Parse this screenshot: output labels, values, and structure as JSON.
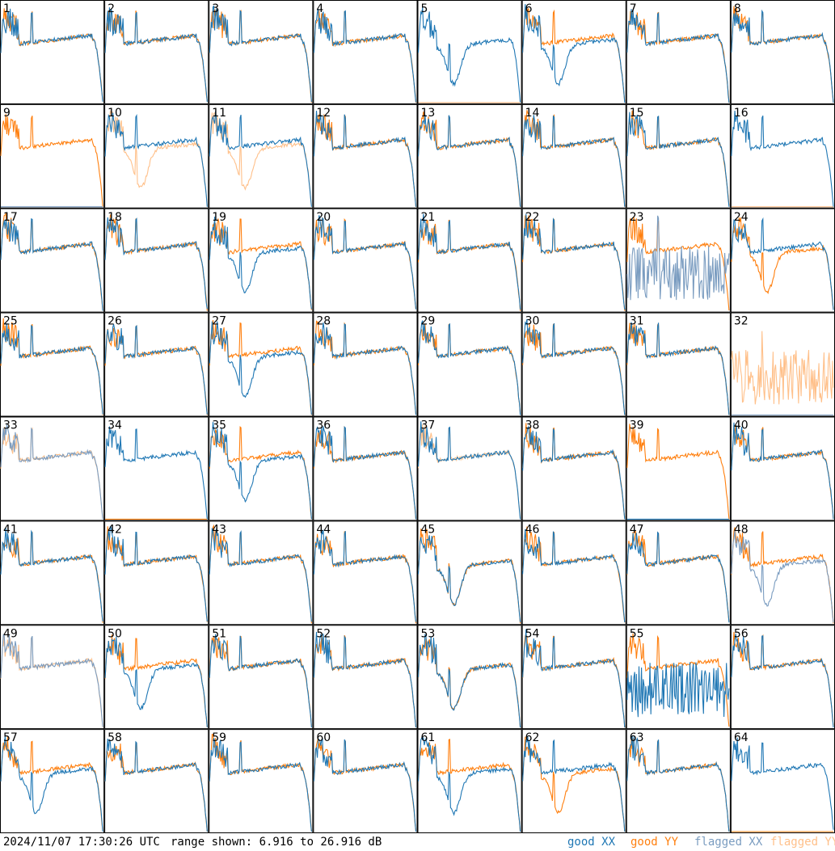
{
  "chart_data": {
    "type": "line",
    "layout": "8x8 grid of small multiples",
    "panel_labels": [
      "1",
      "2",
      "3",
      "4",
      "5",
      "6",
      "7",
      "8",
      "9",
      "10",
      "11",
      "12",
      "13",
      "14",
      "15",
      "16",
      "17",
      "18",
      "19",
      "20",
      "21",
      "22",
      "23",
      "24",
      "25",
      "26",
      "27",
      "28",
      "29",
      "30",
      "31",
      "32",
      "33",
      "34",
      "35",
      "36",
      "37",
      "38",
      "39",
      "40",
      "41",
      "42",
      "43",
      "44",
      "45",
      "46",
      "47",
      "48",
      "49",
      "50",
      "51",
      "52",
      "53",
      "54",
      "55",
      "56",
      "57",
      "58",
      "59",
      "60",
      "61",
      "62",
      "63",
      "64"
    ],
    "ylim": [
      6.916,
      26.916
    ],
    "yunit": "dB",
    "series_legend": [
      "good XX",
      "good YY",
      "flagged XX",
      "flagged YY"
    ],
    "colors": {
      "good_xx": "#1f77b4",
      "good_yy": "#ff7f0e",
      "flagged_xx": "#7a9cc0",
      "flagged_yy": "#ffc08a"
    },
    "panels": [
      {
        "id": 1,
        "xx": "good",
        "yy": "good",
        "xx_shape": "bandpass",
        "yy_shape": "bandpass"
      },
      {
        "id": 2,
        "xx": "good",
        "yy": "good",
        "xx_shape": "bandpass",
        "yy_shape": "bandpass"
      },
      {
        "id": 3,
        "xx": "good",
        "yy": "good",
        "xx_shape": "bandpass",
        "yy_shape": "bandpass"
      },
      {
        "id": 4,
        "xx": "good",
        "yy": "good",
        "xx_shape": "bandpass",
        "yy_shape": "bandpass"
      },
      {
        "id": 5,
        "xx": "good",
        "yy": "flagged",
        "xx_shape": "dip",
        "yy_shape": "zero"
      },
      {
        "id": 6,
        "xx": "good",
        "yy": "good",
        "xx_shape": "dip",
        "yy_shape": "bandpass"
      },
      {
        "id": 7,
        "xx": "good",
        "yy": "good",
        "xx_shape": "bandpass",
        "yy_shape": "bandpass"
      },
      {
        "id": 8,
        "xx": "good",
        "yy": "good",
        "xx_shape": "bandpass",
        "yy_shape": "bandpass"
      },
      {
        "id": 9,
        "xx": "flagged",
        "yy": "good",
        "xx_shape": "zero",
        "yy_shape": "bandpass"
      },
      {
        "id": 10,
        "xx": "good",
        "yy": "flagged",
        "xx_shape": "bandpass",
        "yy_shape": "dip"
      },
      {
        "id": 11,
        "xx": "good",
        "yy": "flagged",
        "xx_shape": "bandpass",
        "yy_shape": "dip"
      },
      {
        "id": 12,
        "xx": "good",
        "yy": "good",
        "xx_shape": "bandpass",
        "yy_shape": "bandpass"
      },
      {
        "id": 13,
        "xx": "good",
        "yy": "good",
        "xx_shape": "bandpass",
        "yy_shape": "bandpass"
      },
      {
        "id": 14,
        "xx": "good",
        "yy": "good",
        "xx_shape": "bandpass",
        "yy_shape": "bandpass"
      },
      {
        "id": 15,
        "xx": "good",
        "yy": "good",
        "xx_shape": "bandpass",
        "yy_shape": "bandpass"
      },
      {
        "id": 16,
        "xx": "good",
        "yy": "flagged",
        "xx_shape": "bandpass",
        "yy_shape": "zero"
      },
      {
        "id": 17,
        "xx": "good",
        "yy": "good",
        "xx_shape": "bandpass",
        "yy_shape": "bandpass"
      },
      {
        "id": 18,
        "xx": "good",
        "yy": "good",
        "xx_shape": "bandpass",
        "yy_shape": "bandpass"
      },
      {
        "id": 19,
        "xx": "good",
        "yy": "good",
        "xx_shape": "dip",
        "yy_shape": "bandpass"
      },
      {
        "id": 20,
        "xx": "good",
        "yy": "good",
        "xx_shape": "bandpass",
        "yy_shape": "bandpass"
      },
      {
        "id": 21,
        "xx": "good",
        "yy": "good",
        "xx_shape": "bandpass",
        "yy_shape": "bandpass"
      },
      {
        "id": 22,
        "xx": "good",
        "yy": "good",
        "xx_shape": "bandpass",
        "yy_shape": "bandpass"
      },
      {
        "id": 23,
        "xx": "flagged",
        "yy": "good",
        "xx_shape": "noise",
        "yy_shape": "bandpass"
      },
      {
        "id": 24,
        "xx": "good",
        "yy": "good",
        "xx_shape": "bandpass",
        "yy_shape": "dip"
      },
      {
        "id": 25,
        "xx": "good",
        "yy": "good",
        "xx_shape": "bandpass",
        "yy_shape": "bandpass"
      },
      {
        "id": 26,
        "xx": "good",
        "yy": "good",
        "xx_shape": "bandpass",
        "yy_shape": "bandpass"
      },
      {
        "id": 27,
        "xx": "good",
        "yy": "good",
        "xx_shape": "dip",
        "yy_shape": "bandpass"
      },
      {
        "id": 28,
        "xx": "good",
        "yy": "good",
        "xx_shape": "bandpass",
        "yy_shape": "bandpass"
      },
      {
        "id": 29,
        "xx": "good",
        "yy": "good",
        "xx_shape": "bandpass",
        "yy_shape": "bandpass"
      },
      {
        "id": 30,
        "xx": "good",
        "yy": "good",
        "xx_shape": "bandpass",
        "yy_shape": "bandpass"
      },
      {
        "id": 31,
        "xx": "good",
        "yy": "good",
        "xx_shape": "bandpass",
        "yy_shape": "bandpass"
      },
      {
        "id": 32,
        "xx": "flagged",
        "yy": "flagged",
        "xx_shape": "zero",
        "yy_shape": "noise"
      },
      {
        "id": 33,
        "xx": "flagged",
        "yy": "flagged",
        "xx_shape": "bandpass",
        "yy_shape": "bandpass"
      },
      {
        "id": 34,
        "xx": "good",
        "yy": "good",
        "xx_shape": "bandpass",
        "yy_shape": "zero"
      },
      {
        "id": 35,
        "xx": "good",
        "yy": "good",
        "xx_shape": "dip",
        "yy_shape": "bandpass"
      },
      {
        "id": 36,
        "xx": "good",
        "yy": "good",
        "xx_shape": "bandpass",
        "yy_shape": "bandpass"
      },
      {
        "id": 37,
        "xx": "good",
        "yy": "flagged",
        "xx_shape": "bandpass",
        "yy_shape": "bandpass"
      },
      {
        "id": 38,
        "xx": "good",
        "yy": "good",
        "xx_shape": "bandpass",
        "yy_shape": "bandpass"
      },
      {
        "id": 39,
        "xx": "good",
        "yy": "good",
        "xx_shape": "zero",
        "yy_shape": "bandpass"
      },
      {
        "id": 40,
        "xx": "good",
        "yy": "good",
        "xx_shape": "bandpass",
        "yy_shape": "bandpass"
      },
      {
        "id": 41,
        "xx": "good",
        "yy": "good",
        "xx_shape": "bandpass",
        "yy_shape": "bandpass"
      },
      {
        "id": 42,
        "xx": "good",
        "yy": "good",
        "xx_shape": "bandpass",
        "yy_shape": "bandpass"
      },
      {
        "id": 43,
        "xx": "good",
        "yy": "good",
        "xx_shape": "bandpass",
        "yy_shape": "bandpass"
      },
      {
        "id": 44,
        "xx": "good",
        "yy": "good",
        "xx_shape": "bandpass",
        "yy_shape": "bandpass"
      },
      {
        "id": 45,
        "xx": "good",
        "yy": "good",
        "xx_shape": "dip",
        "yy_shape": "dip"
      },
      {
        "id": 46,
        "xx": "good",
        "yy": "good",
        "xx_shape": "bandpass",
        "yy_shape": "bandpass"
      },
      {
        "id": 47,
        "xx": "good",
        "yy": "good",
        "xx_shape": "bandpass",
        "yy_shape": "bandpass"
      },
      {
        "id": 48,
        "xx": "flagged",
        "yy": "good",
        "xx_shape": "dip",
        "yy_shape": "bandpass"
      },
      {
        "id": 49,
        "xx": "flagged",
        "yy": "flagged",
        "xx_shape": "bandpass",
        "yy_shape": "bandpass"
      },
      {
        "id": 50,
        "xx": "good",
        "yy": "good",
        "xx_shape": "dip",
        "yy_shape": "bandpass"
      },
      {
        "id": 51,
        "xx": "good",
        "yy": "good",
        "xx_shape": "bandpass",
        "yy_shape": "bandpass"
      },
      {
        "id": 52,
        "xx": "good",
        "yy": "good",
        "xx_shape": "bandpass",
        "yy_shape": "bandpass"
      },
      {
        "id": 53,
        "xx": "good",
        "yy": "good",
        "xx_shape": "dip",
        "yy_shape": "dip"
      },
      {
        "id": 54,
        "xx": "good",
        "yy": "good",
        "xx_shape": "bandpass",
        "yy_shape": "bandpass"
      },
      {
        "id": 55,
        "xx": "good",
        "yy": "good",
        "xx_shape": "noise",
        "yy_shape": "bandpass"
      },
      {
        "id": 56,
        "xx": "good",
        "yy": "good",
        "xx_shape": "bandpass",
        "yy_shape": "bandpass"
      },
      {
        "id": 57,
        "xx": "good",
        "yy": "good",
        "xx_shape": "dip",
        "yy_shape": "bandpass"
      },
      {
        "id": 58,
        "xx": "good",
        "yy": "good",
        "xx_shape": "bandpass",
        "yy_shape": "bandpass"
      },
      {
        "id": 59,
        "xx": "good",
        "yy": "good",
        "xx_shape": "bandpass",
        "yy_shape": "bandpass"
      },
      {
        "id": 60,
        "xx": "good",
        "yy": "good",
        "xx_shape": "bandpass",
        "yy_shape": "bandpass"
      },
      {
        "id": 61,
        "xx": "good",
        "yy": "good",
        "xx_shape": "dip",
        "yy_shape": "bandpass"
      },
      {
        "id": 62,
        "xx": "good",
        "yy": "good",
        "xx_shape": "bandpass",
        "yy_shape": "dip"
      },
      {
        "id": 63,
        "xx": "good",
        "yy": "good",
        "xx_shape": "bandpass",
        "yy_shape": "bandpass"
      },
      {
        "id": 64,
        "xx": "good",
        "yy": "good",
        "xx_shape": "bandpass",
        "yy_shape": "zero"
      }
    ]
  },
  "footer": {
    "timestamp": "2024/11/07 17:30:26 UTC",
    "range_text": "range shown: 6.916 to 26.916 dB",
    "legend_good_xx": "good XX",
    "legend_good_yy": "good YY",
    "legend_flagged_xx": "flagged XX",
    "legend_flagged_yy": "flagged YY"
  }
}
